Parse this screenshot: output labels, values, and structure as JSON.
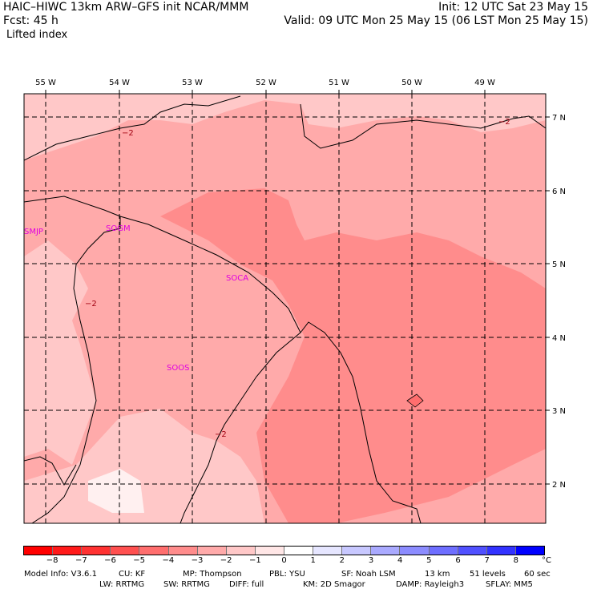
{
  "header": {
    "title": "HAIC–HIWC 13km ARW–GFS init    NCAR/MMM",
    "forecast": "Fcst:   45 h",
    "field": "Lifted index",
    "init": "Init: 12 UTC Sat 23 May 15",
    "valid": "Valid: 09 UTC Mon 25 May 15 (06 LST Mon 25 May 15)"
  },
  "map": {
    "longitudes": [
      "55 W",
      "54 W",
      "53 W",
      "52 W",
      "51 W",
      "50 W",
      "49 W"
    ],
    "latitudes": [
      "7 N",
      "6 N",
      "5 N",
      "4 N",
      "3 N",
      "2 N"
    ],
    "stations": [
      "SMJP",
      "SOGM",
      "SOCA",
      "SOOS"
    ],
    "contour_label": "−2",
    "colors": {
      "fill_light": "#ffc8c8",
      "fill_medium": "#ffaaaa",
      "fill_dark": "#ff8c8c",
      "fill_palest": "#fff0f0",
      "border": "#000000",
      "station_text": "#e000e0"
    }
  },
  "colorbar": {
    "labels": [
      "−8",
      "−7",
      "−6",
      "−5",
      "−4",
      "−3",
      "−2",
      "−1",
      "0",
      "1",
      "2",
      "3",
      "4",
      "5",
      "6",
      "7",
      "8"
    ],
    "unit": "°C",
    "colors": [
      "#ff0000",
      "#ff1a1a",
      "#ff3232",
      "#ff5050",
      "#ff6e6e",
      "#ff8c8c",
      "#ffaaaa",
      "#ffc8c8",
      "#ffe6e6",
      "#ffffff",
      "#e6e6ff",
      "#c8c8ff",
      "#aaaaff",
      "#8c8cff",
      "#6e6eff",
      "#5050ff",
      "#3232ff",
      "#0000ff"
    ]
  },
  "footer": {
    "line1": [
      "Model Info: V3.6.1",
      "CU: KF",
      "MP: Thompson",
      "PBL: YSU",
      "SF: Noah LSM",
      "13 km",
      "51 levels",
      "60 sec"
    ],
    "line2": [
      "LW: RRTMG",
      "SW: RRTMG",
      "DIFF: full",
      "KM: 2D Smagor",
      "DAMP: Rayleigh3",
      "SFLAY: MM5"
    ]
  }
}
